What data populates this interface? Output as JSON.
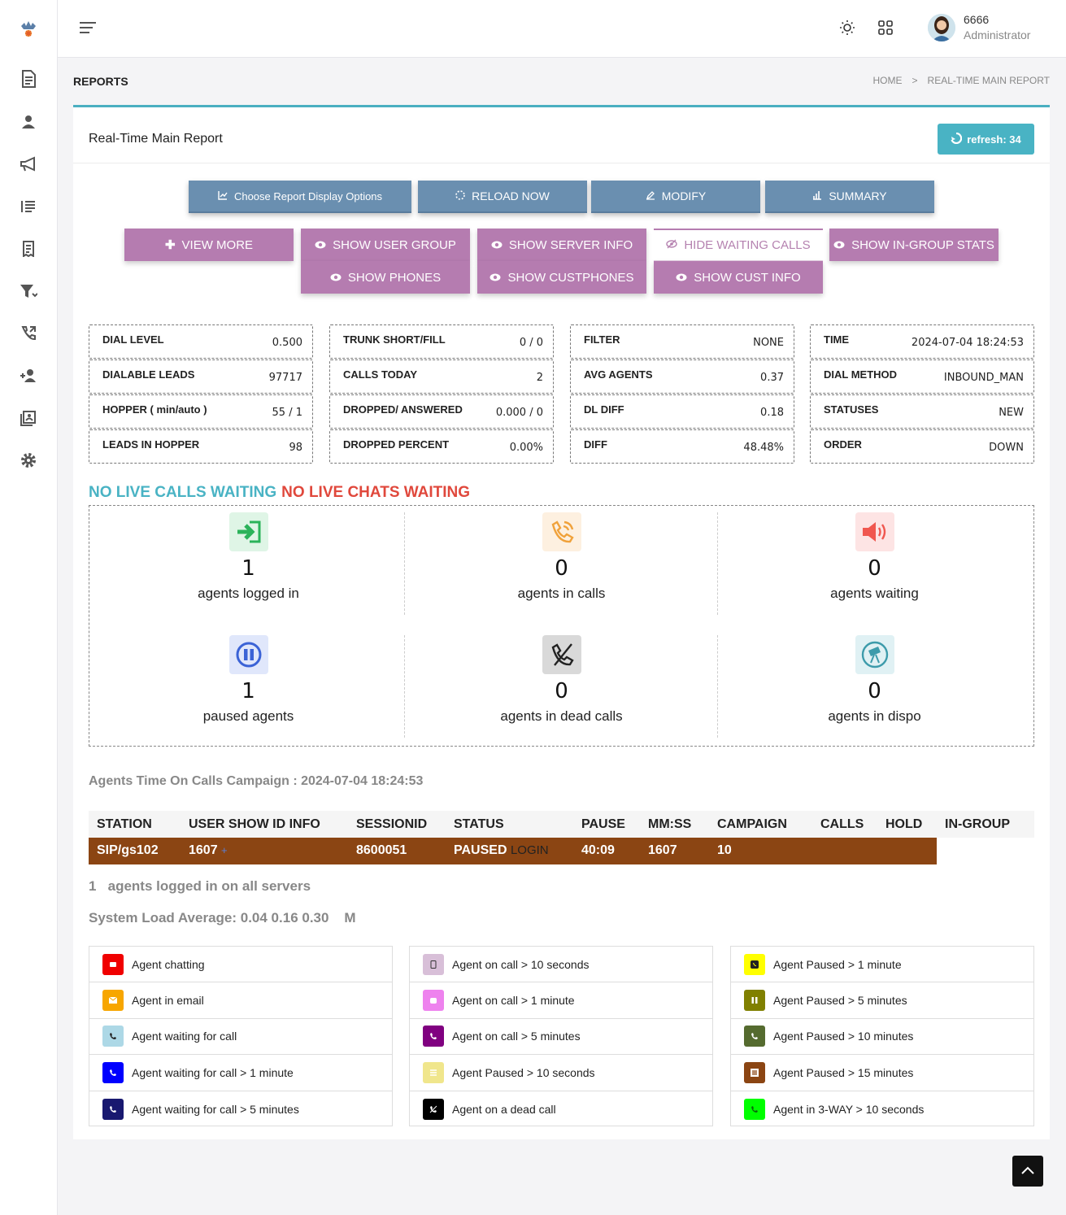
{
  "user": {
    "id": "6666",
    "role": "Administrator"
  },
  "page": {
    "heading": "REPORTS",
    "breadcrumb": [
      "HOME",
      ">",
      "REAL-TIME MAIN REPORT"
    ]
  },
  "card": {
    "title": "Real-Time Main Report",
    "refresh_label": "refresh: 34"
  },
  "toolbar": {
    "options": "Choose Report Display Options",
    "reload": "RELOAD NOW",
    "modify": "MODIFY",
    "summary": "SUMMARY"
  },
  "toggles": {
    "view_more": "VIEW MORE",
    "user_group": "SHOW USER GROUP",
    "server_info": "SHOW SERVER INFO",
    "waiting_calls": "HIDE WAITING CALLS",
    "ingroup_stats": "SHOW IN-GROUP STATS",
    "phones": "SHOW PHONES",
    "custphones": "SHOW CUSTPHONES",
    "cust_info": "SHOW CUST INFO"
  },
  "stats": [
    [
      {
        "k": "DIAL LEVEL",
        "v": "0.500"
      },
      {
        "k": "DIALABLE LEADS",
        "v": "97717"
      },
      {
        "k": "HOPPER ( min/auto )",
        "v": "55 / 1"
      },
      {
        "k": "LEADS IN HOPPER",
        "v": "98"
      }
    ],
    [
      {
        "k": "TRUNK SHORT/FILL",
        "v": "0 / 0"
      },
      {
        "k": "CALLS TODAY",
        "v": "2"
      },
      {
        "k": "DROPPED/ ANSWERED",
        "v": "0.000 / 0"
      },
      {
        "k": "DROPPED PERCENT",
        "v": "0.00%"
      }
    ],
    [
      {
        "k": "FILTER",
        "v": "NONE"
      },
      {
        "k": "AVG AGENTS",
        "v": "0.37"
      },
      {
        "k": "DL DIFF",
        "v": "0.18"
      },
      {
        "k": "DIFF",
        "v": "48.48%"
      }
    ],
    [
      {
        "k": "TIME",
        "v": "2024-07-04 18:24:53"
      },
      {
        "k": "DIAL METHOD",
        "v": "INBOUND_MAN"
      },
      {
        "k": "STATUSES",
        "v": "NEW"
      },
      {
        "k": "ORDER",
        "v": "DOWN"
      }
    ]
  ],
  "waiting": {
    "calls": "NO LIVE CALLS WAITING",
    "chats": "NO LIVE CHATS WAITING"
  },
  "agents": [
    {
      "num": "1",
      "label": "agents logged in",
      "icon": "login-icon",
      "color": "#dff5e6"
    },
    {
      "num": "0",
      "label": "agents in calls",
      "icon": "phone-ringing-icon",
      "color": "#fdf0e0"
    },
    {
      "num": "0",
      "label": "agents waiting",
      "icon": "speaker-icon",
      "color": "#fde4e4"
    },
    {
      "num": "1",
      "label": "paused agents",
      "icon": "pause-icon",
      "color": "#e0e7fb"
    },
    {
      "num": "0",
      "label": "agents in dead calls",
      "icon": "phone-off-icon",
      "color": "#d9d9d9"
    },
    {
      "num": "0",
      "label": "agents in dispo",
      "icon": "telescope-icon",
      "color": "#e0f1f4"
    }
  ],
  "time_on_calls": "Agents Time On Calls Campaign : 2024-07-04 18:24:53",
  "table": {
    "headers": [
      "STATION",
      "USER SHOW ID INFO",
      "SESSIONID",
      "STATUS",
      "PAUSE",
      "MM:SS",
      "CAMPAIGN",
      "CALLS",
      "HOLD",
      "IN-GROUP"
    ],
    "row": {
      "station": "SIP/gs102",
      "user": "1607",
      "plus": "+",
      "session": "8600051",
      "status": "PAUSED",
      "sub": "LOGIN",
      "pause": "40:09",
      "mmss": "1607",
      "campaign": "10"
    }
  },
  "footer": {
    "logged": "1   agents logged in on all servers",
    "load": "System Load Average: 0.04 0.16 0.30    M"
  },
  "legend": [
    [
      {
        "label": "Agent chatting",
        "color": "#f00000"
      },
      {
        "label": "Agent in email",
        "color": "#f7a600"
      },
      {
        "label": "Agent waiting for call",
        "color": "#add8e6"
      },
      {
        "label": "Agent waiting for call > 1 minute",
        "color": "#0000ff"
      },
      {
        "label": "Agent waiting for call > 5 minutes",
        "color": "#191970"
      }
    ],
    [
      {
        "label": "Agent on call > 10 seconds",
        "color": "#d8bfd8"
      },
      {
        "label": "Agent on call > 1 minute",
        "color": "#ee82ee"
      },
      {
        "label": "Agent on call > 5 minutes",
        "color": "#800080"
      },
      {
        "label": "Agent Paused > 10 seconds",
        "color": "#f0e68c"
      },
      {
        "label": "Agent on a dead call",
        "color": "#000000"
      }
    ],
    [
      {
        "label": "Agent Paused > 1 minute",
        "color": "#ffff00"
      },
      {
        "label": "Agent Paused > 5 minutes",
        "color": "#808000"
      },
      {
        "label": "Agent Paused > 10 minutes",
        "color": "#556b2f"
      },
      {
        "label": "Agent Paused > 15 minutes",
        "color": "#8b4513"
      },
      {
        "label": "Agent in 3-WAY > 10 seconds",
        "color": "#00ff00"
      }
    ]
  ]
}
